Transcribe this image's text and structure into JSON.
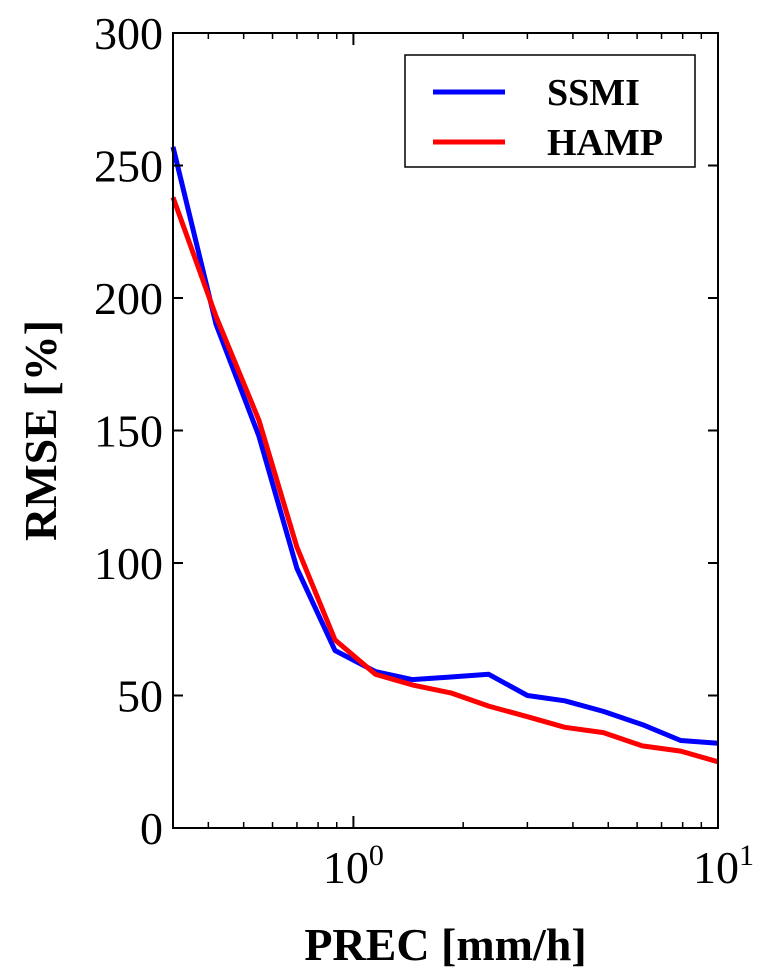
{
  "chart_data": {
    "type": "line",
    "xlabel": "PREC [mm/h]",
    "ylabel": "RMSE [%]",
    "xscale": "log",
    "xlim": [
      0.32,
      10
    ],
    "ylim": [
      0,
      300
    ],
    "grid": false,
    "legend_position": "top-right",
    "x_ticks": [
      {
        "value": 1,
        "base": "10",
        "exp": "0"
      },
      {
        "value": 10,
        "base": "10",
        "exp": "1"
      }
    ],
    "y_ticks": [
      "0",
      "50",
      "100",
      "150",
      "200",
      "250",
      "300"
    ],
    "series": [
      {
        "name": "SSMI",
        "color": "#0000ff",
        "x": [
          0.32,
          0.42,
          0.55,
          0.7,
          0.89,
          1.15,
          1.45,
          1.85,
          2.35,
          3.0,
          3.8,
          4.85,
          6.2,
          7.9,
          10.0
        ],
        "y": [
          257,
          190,
          148,
          98,
          67,
          59,
          56,
          57,
          58,
          50,
          48,
          44,
          39,
          33,
          32
        ]
      },
      {
        "name": "HAMP",
        "color": "#ff0000",
        "x": [
          0.32,
          0.42,
          0.55,
          0.7,
          0.89,
          1.15,
          1.45,
          1.85,
          2.35,
          3.0,
          3.8,
          4.85,
          6.2,
          7.9,
          10.0
        ],
        "y": [
          238,
          193,
          154,
          106,
          71,
          58,
          54,
          51,
          46,
          42,
          38,
          36,
          31,
          29,
          25
        ]
      }
    ]
  }
}
